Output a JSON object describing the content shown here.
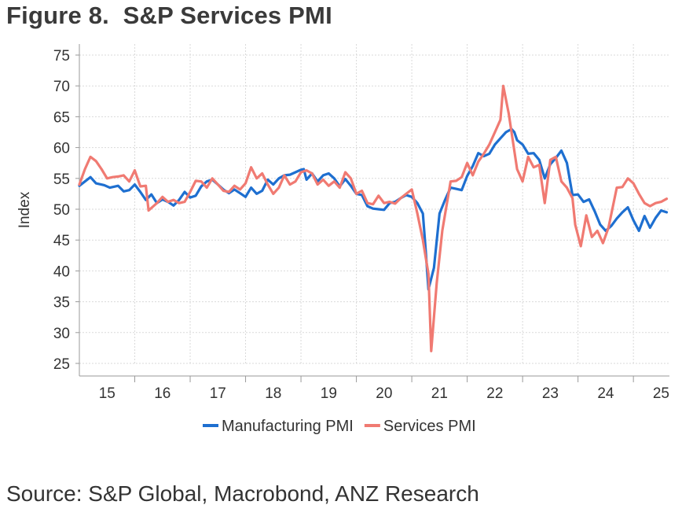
{
  "title": "Figure 8.  S&P Services PMI",
  "source": "Source: S&P Global, Macrobond, ANZ Research",
  "chart_data": {
    "type": "line",
    "ylabel": "Index",
    "ylim": [
      25,
      75
    ],
    "yticks": [
      25,
      30,
      35,
      40,
      45,
      50,
      55,
      60,
      65,
      70,
      75
    ],
    "xlim": [
      2015,
      2025.65
    ],
    "year_labels": [
      "15",
      "16",
      "17",
      "18",
      "19",
      "20",
      "21",
      "22",
      "23",
      "24",
      "25"
    ],
    "grid": true,
    "legend": "bottom-center",
    "colors": {
      "manufacturing": "#1e6fd0",
      "services": "#f07a72",
      "grid": "#d9d9d9",
      "axis": "#999999"
    },
    "series": [
      {
        "name": "Manufacturing PMI",
        "color": "#1e6fd0",
        "points": [
          [
            2015.0,
            53.8
          ],
          [
            2015.1,
            54.5
          ],
          [
            2015.2,
            55.2
          ],
          [
            2015.3,
            54.2
          ],
          [
            2015.45,
            53.9
          ],
          [
            2015.55,
            53.5
          ],
          [
            2015.7,
            53.8
          ],
          [
            2015.8,
            52.9
          ],
          [
            2015.9,
            53.1
          ],
          [
            2016.0,
            54.0
          ],
          [
            2016.1,
            52.8
          ],
          [
            2016.2,
            51.5
          ],
          [
            2016.3,
            52.4
          ],
          [
            2016.4,
            51.0
          ],
          [
            2016.5,
            51.6
          ],
          [
            2016.6,
            51.2
          ],
          [
            2016.7,
            50.6
          ],
          [
            2016.8,
            51.5
          ],
          [
            2016.9,
            52.8
          ],
          [
            2017.0,
            51.9
          ],
          [
            2017.1,
            52.2
          ],
          [
            2017.2,
            53.7
          ],
          [
            2017.3,
            54.5
          ],
          [
            2017.4,
            54.8
          ],
          [
            2017.5,
            54.0
          ],
          [
            2017.6,
            53.2
          ],
          [
            2017.7,
            52.6
          ],
          [
            2017.8,
            53.2
          ],
          [
            2017.9,
            52.6
          ],
          [
            2018.0,
            52.0
          ],
          [
            2018.1,
            53.5
          ],
          [
            2018.2,
            52.5
          ],
          [
            2018.3,
            53.0
          ],
          [
            2018.4,
            54.8
          ],
          [
            2018.5,
            54.0
          ],
          [
            2018.6,
            55.0
          ],
          [
            2018.7,
            55.5
          ],
          [
            2018.8,
            55.6
          ],
          [
            2018.9,
            56.0
          ],
          [
            2019.0,
            56.4
          ],
          [
            2019.05,
            56.5
          ],
          [
            2019.1,
            54.8
          ],
          [
            2019.2,
            55.8
          ],
          [
            2019.3,
            54.5
          ],
          [
            2019.4,
            55.5
          ],
          [
            2019.5,
            55.8
          ],
          [
            2019.6,
            55.0
          ],
          [
            2019.7,
            53.7
          ],
          [
            2019.8,
            54.9
          ],
          [
            2019.9,
            53.8
          ],
          [
            2020.0,
            52.5
          ],
          [
            2020.1,
            52.3
          ],
          [
            2020.2,
            50.5
          ],
          [
            2020.3,
            50.1
          ],
          [
            2020.4,
            50.0
          ],
          [
            2020.5,
            49.9
          ],
          [
            2020.6,
            51.0
          ],
          [
            2020.7,
            51.2
          ],
          [
            2020.8,
            51.8
          ],
          [
            2020.9,
            52.3
          ],
          [
            2021.0,
            52.0
          ],
          [
            2021.1,
            51.0
          ],
          [
            2021.2,
            49.3
          ],
          [
            2021.25,
            43.5
          ],
          [
            2021.3,
            37.0
          ],
          [
            2021.4,
            40.5
          ],
          [
            2021.5,
            49.3
          ],
          [
            2021.6,
            51.5
          ],
          [
            2021.7,
            53.5
          ],
          [
            2021.8,
            53.3
          ],
          [
            2021.9,
            53.1
          ],
          [
            2022.0,
            55.4
          ],
          [
            2022.1,
            57.0
          ],
          [
            2022.2,
            59.1
          ],
          [
            2022.3,
            58.6
          ],
          [
            2022.4,
            59.0
          ],
          [
            2022.5,
            60.5
          ],
          [
            2022.6,
            61.5
          ],
          [
            2022.7,
            62.5
          ],
          [
            2022.8,
            63.0
          ],
          [
            2022.85,
            62.5
          ],
          [
            2022.9,
            61.2
          ],
          [
            2023.0,
            60.5
          ],
          [
            2023.1,
            59.0
          ],
          [
            2023.2,
            59.1
          ],
          [
            2023.3,
            58.0
          ],
          [
            2023.4,
            55.0
          ],
          [
            2023.5,
            57.3
          ],
          [
            2023.6,
            58.3
          ],
          [
            2023.7,
            59.5
          ],
          [
            2023.8,
            57.5
          ],
          [
            2023.9,
            52.3
          ],
          [
            2024.0,
            52.4
          ],
          [
            2024.1,
            51.2
          ],
          [
            2024.2,
            51.6
          ],
          [
            2024.3,
            49.7
          ],
          [
            2024.4,
            47.5
          ],
          [
            2024.5,
            46.5
          ],
          [
            2024.6,
            47.3
          ],
          [
            2024.7,
            48.5
          ],
          [
            2024.8,
            49.5
          ],
          [
            2024.9,
            50.3
          ],
          [
            2025.0,
            48.2
          ],
          [
            2025.1,
            46.5
          ],
          [
            2025.2,
            48.9
          ],
          [
            2025.3,
            47.0
          ],
          [
            2025.4,
            48.6
          ],
          [
            2025.5,
            49.8
          ],
          [
            2025.6,
            49.5
          ]
        ]
      },
      {
        "name": "Services PMI",
        "color": "#f07a72",
        "points": [
          [
            2015.0,
            54.0
          ],
          [
            2015.1,
            56.5
          ],
          [
            2015.2,
            58.5
          ],
          [
            2015.3,
            57.8
          ],
          [
            2015.4,
            56.5
          ],
          [
            2015.5,
            55.0
          ],
          [
            2015.6,
            55.2
          ],
          [
            2015.7,
            55.3
          ],
          [
            2015.8,
            55.5
          ],
          [
            2015.9,
            54.5
          ],
          [
            2016.0,
            56.3
          ],
          [
            2016.1,
            53.7
          ],
          [
            2016.2,
            53.8
          ],
          [
            2016.25,
            49.8
          ],
          [
            2016.4,
            51.0
          ],
          [
            2016.5,
            52.0
          ],
          [
            2016.6,
            51.2
          ],
          [
            2016.7,
            51.5
          ],
          [
            2016.8,
            51.0
          ],
          [
            2016.9,
            51.2
          ],
          [
            2017.0,
            52.8
          ],
          [
            2017.1,
            54.6
          ],
          [
            2017.2,
            54.5
          ],
          [
            2017.3,
            53.5
          ],
          [
            2017.4,
            55.0
          ],
          [
            2017.5,
            54.0
          ],
          [
            2017.6,
            53.0
          ],
          [
            2017.7,
            52.8
          ],
          [
            2017.8,
            53.8
          ],
          [
            2017.9,
            53.2
          ],
          [
            2018.0,
            54.2
          ],
          [
            2018.1,
            56.8
          ],
          [
            2018.2,
            55.0
          ],
          [
            2018.3,
            55.8
          ],
          [
            2018.4,
            54.0
          ],
          [
            2018.5,
            52.5
          ],
          [
            2018.6,
            53.5
          ],
          [
            2018.7,
            55.5
          ],
          [
            2018.8,
            54.0
          ],
          [
            2018.9,
            54.5
          ],
          [
            2019.0,
            56.0
          ],
          [
            2019.1,
            56.3
          ],
          [
            2019.2,
            55.8
          ],
          [
            2019.3,
            54.0
          ],
          [
            2019.4,
            54.8
          ],
          [
            2019.5,
            53.8
          ],
          [
            2019.6,
            54.5
          ],
          [
            2019.7,
            53.5
          ],
          [
            2019.8,
            56.0
          ],
          [
            2019.9,
            55.0
          ],
          [
            2020.0,
            52.5
          ],
          [
            2020.1,
            53.0
          ],
          [
            2020.2,
            51.0
          ],
          [
            2020.3,
            50.8
          ],
          [
            2020.4,
            52.2
          ],
          [
            2020.5,
            51.0
          ],
          [
            2020.6,
            51.2
          ],
          [
            2020.7,
            50.9
          ],
          [
            2020.8,
            51.8
          ],
          [
            2020.9,
            52.5
          ],
          [
            2021.0,
            53.2
          ],
          [
            2021.1,
            49.3
          ],
          [
            2021.2,
            45.0
          ],
          [
            2021.3,
            39.5
          ],
          [
            2021.35,
            27.0
          ],
          [
            2021.45,
            38.0
          ],
          [
            2021.55,
            46.5
          ],
          [
            2021.7,
            54.5
          ],
          [
            2021.8,
            54.6
          ],
          [
            2021.9,
            55.2
          ],
          [
            2022.0,
            57.5
          ],
          [
            2022.1,
            55.5
          ],
          [
            2022.2,
            57.7
          ],
          [
            2022.3,
            59.0
          ],
          [
            2022.4,
            60.5
          ],
          [
            2022.5,
            62.5
          ],
          [
            2022.6,
            64.5
          ],
          [
            2022.65,
            70.0
          ],
          [
            2022.75,
            65.5
          ],
          [
            2022.9,
            56.5
          ],
          [
            2023.0,
            54.5
          ],
          [
            2023.1,
            58.5
          ],
          [
            2023.2,
            56.8
          ],
          [
            2023.3,
            57.2
          ],
          [
            2023.4,
            51.0
          ],
          [
            2023.5,
            58.0
          ],
          [
            2023.6,
            58.5
          ],
          [
            2023.7,
            54.5
          ],
          [
            2023.8,
            53.5
          ],
          [
            2023.9,
            51.8
          ],
          [
            2023.95,
            47.5
          ],
          [
            2024.05,
            44.0
          ],
          [
            2024.15,
            49.0
          ],
          [
            2024.25,
            45.5
          ],
          [
            2024.35,
            46.5
          ],
          [
            2024.45,
            44.5
          ],
          [
            2024.55,
            47.0
          ],
          [
            2024.7,
            53.5
          ],
          [
            2024.8,
            53.6
          ],
          [
            2024.9,
            55.0
          ],
          [
            2025.0,
            54.2
          ],
          [
            2025.1,
            52.5
          ],
          [
            2025.2,
            51.0
          ],
          [
            2025.3,
            50.5
          ],
          [
            2025.4,
            51.0
          ],
          [
            2025.5,
            51.2
          ],
          [
            2025.6,
            51.7
          ]
        ]
      }
    ]
  }
}
